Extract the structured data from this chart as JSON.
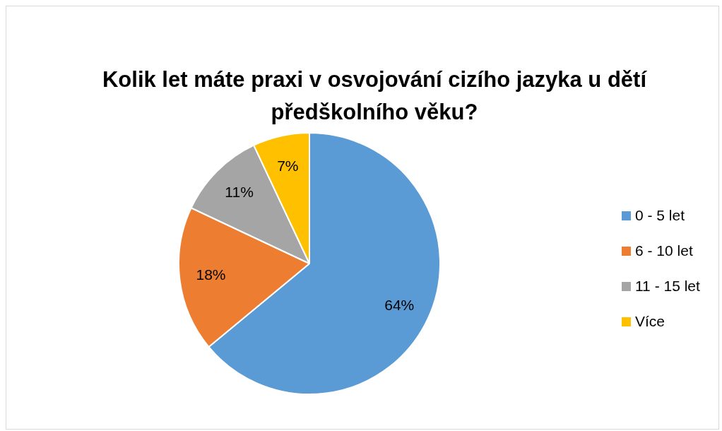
{
  "chart_data": {
    "type": "pie",
    "title": "Kolik let máte praxi v osvojování cizího jazyka u dětí předškolního věku?",
    "categories": [
      "0 - 5 let",
      "6 - 10 let",
      "11 - 15 let",
      "Více"
    ],
    "values": [
      64,
      18,
      11,
      7
    ],
    "value_labels": [
      "64%",
      "18%",
      "11%",
      "7%"
    ],
    "colors": [
      "#5b9bd5",
      "#ed7d31",
      "#a5a5a5",
      "#ffc000"
    ],
    "legend": "right"
  }
}
